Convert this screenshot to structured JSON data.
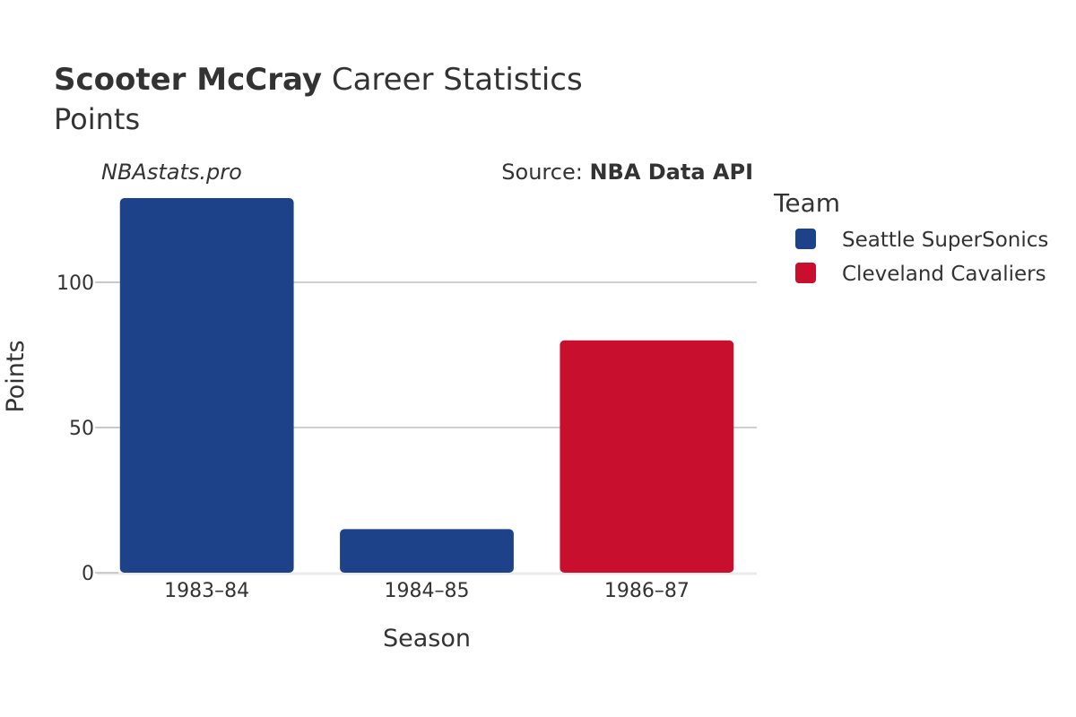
{
  "header": {
    "player_name": "Scooter McCray",
    "title_rest": " Career Statistics",
    "subtitle": "Points"
  },
  "watermark": "NBAstats.pro",
  "source": {
    "label": "Source: ",
    "value": "NBA Data API"
  },
  "legend": {
    "title": "Team",
    "items": [
      {
        "name": "Seattle SuperSonics",
        "color": "#1d428a"
      },
      {
        "name": "Cleveland Cavaliers",
        "color": "#c8102e"
      }
    ]
  },
  "chart_data": {
    "type": "bar",
    "title": "Scooter McCray Career Statistics",
    "subtitle": "Points",
    "xlabel": "Season",
    "ylabel": "Points",
    "categories": [
      "1983–84",
      "1984–85",
      "1986–87"
    ],
    "series": [
      {
        "name": "Seattle SuperSonics",
        "color": "#1d428a",
        "values": [
          129,
          15,
          null
        ]
      },
      {
        "name": "Cleveland Cavaliers",
        "color": "#c8102e",
        "values": [
          null,
          null,
          80
        ]
      }
    ],
    "ylim": [
      0,
      129
    ],
    "yticks": [
      0,
      50,
      100
    ],
    "grid": true,
    "legend_position": "right"
  }
}
